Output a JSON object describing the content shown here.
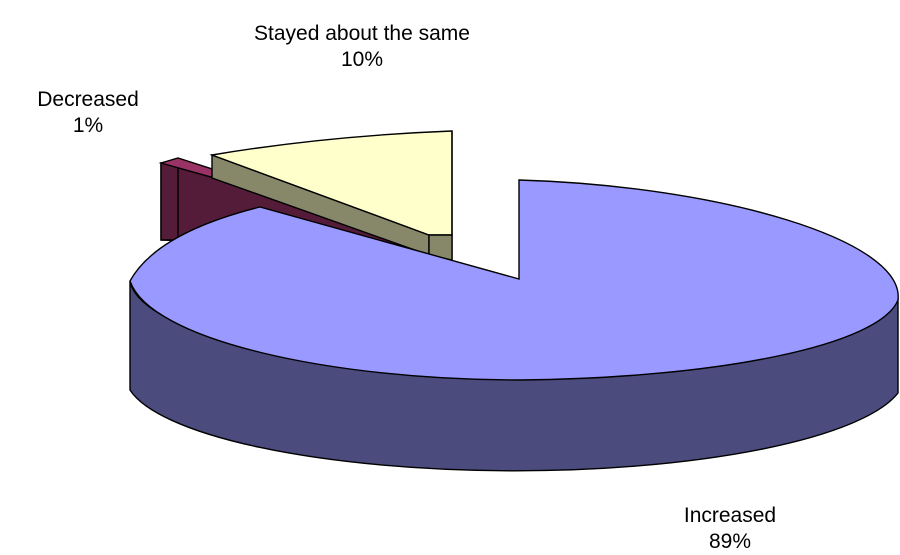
{
  "chart_data": {
    "type": "pie",
    "style": "3d-exploded",
    "slices": [
      {
        "label": "Increased",
        "value": 89,
        "value_label": "89%",
        "color": "#9999ff",
        "side_color": "#4b4b7e"
      },
      {
        "label": "Decreased",
        "value": 1,
        "value_label": "1%",
        "color": "#993366",
        "side_color": "#541c38"
      },
      {
        "label": "Stayed about the same",
        "value": 10,
        "value_label": "10%",
        "color": "#ffffcc",
        "side_color": "#87876a"
      }
    ],
    "outline_color": "#000000",
    "legend": "none"
  }
}
